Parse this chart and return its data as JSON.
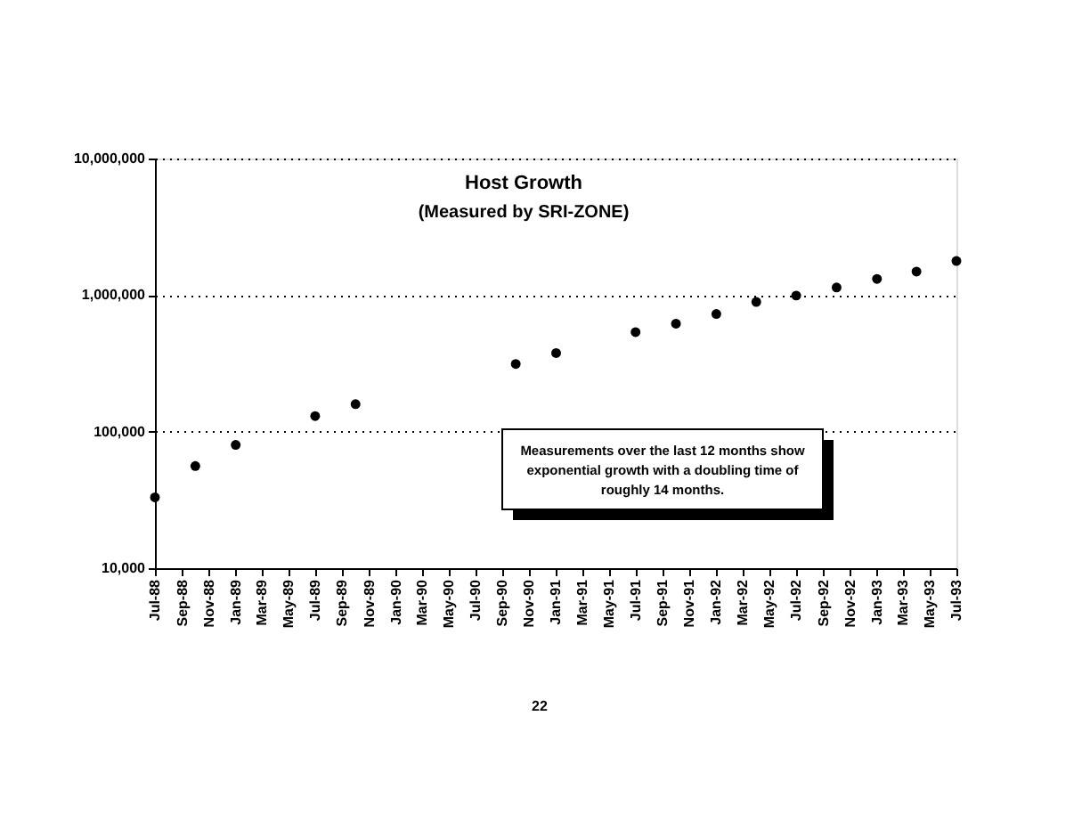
{
  "chart_data": {
    "type": "scatter",
    "title": "Host Growth",
    "subtitle": "(Measured by SRI-ZONE)",
    "x": [
      "1988-07",
      "1988-10",
      "1989-01",
      "1989-07",
      "1989-10",
      "1990-10",
      "1991-01",
      "1991-07",
      "1991-10",
      "1992-01",
      "1992-04",
      "1992-07",
      "1992-10",
      "1993-01",
      "1993-04",
      "1993-07"
    ],
    "series": [
      {
        "color": "#000000",
        "values": [
          33000,
          56000,
          80000,
          130000,
          159000,
          313000,
          376000,
          535000,
          617000,
          727000,
          890000,
          992000,
          1136000,
          1313000,
          1486000,
          1776000
        ]
      }
    ],
    "log": true,
    "ylim": [
      10000,
      10000000
    ],
    "yticks": [
      {
        "value": 10000,
        "label": "10,000"
      },
      {
        "value": 100000,
        "label": "100,000"
      },
      {
        "value": 1000000,
        "label": "1,000,000"
      },
      {
        "value": 10000000,
        "label": "10,000,000"
      }
    ],
    "xlim": [
      "1988-07",
      "1993-07"
    ],
    "xticks": [
      {
        "value": "1988-07",
        "label": "Jul-88"
      },
      {
        "value": "1988-09",
        "label": "Sep-88"
      },
      {
        "value": "1988-11",
        "label": "Nov-88"
      },
      {
        "value": "1989-01",
        "label": "Jan-89"
      },
      {
        "value": "1989-03",
        "label": "Mar-89"
      },
      {
        "value": "1989-05",
        "label": "May-89"
      },
      {
        "value": "1989-07",
        "label": "Jul-89"
      },
      {
        "value": "1989-09",
        "label": "Sep-89"
      },
      {
        "value": "1989-11",
        "label": "Nov-89"
      },
      {
        "value": "1990-01",
        "label": "Jan-90"
      },
      {
        "value": "1990-03",
        "label": "Mar-90"
      },
      {
        "value": "1990-05",
        "label": "May-90"
      },
      {
        "value": "1990-07",
        "label": "Jul-90"
      },
      {
        "value": "1990-09",
        "label": "Sep-90"
      },
      {
        "value": "1990-11",
        "label": "Nov-90"
      },
      {
        "value": "1991-01",
        "label": "Jan-91"
      },
      {
        "value": "1991-03",
        "label": "Mar-91"
      },
      {
        "value": "1991-05",
        "label": "May-91"
      },
      {
        "value": "1991-07",
        "label": "Jul-91"
      },
      {
        "value": "1991-09",
        "label": "Sep-91"
      },
      {
        "value": "1991-11",
        "label": "Nov-91"
      },
      {
        "value": "1992-01",
        "label": "Jan-92"
      },
      {
        "value": "1992-03",
        "label": "Mar-92"
      },
      {
        "value": "1992-05",
        "label": "May-92"
      },
      {
        "value": "1992-07",
        "label": "Jul-92"
      },
      {
        "value": "1992-09",
        "label": "Sep-92"
      },
      {
        "value": "1992-11",
        "label": "Nov-92"
      },
      {
        "value": "1993-01",
        "label": "Jan-93"
      },
      {
        "value": "1993-03",
        "label": "Mar-93"
      },
      {
        "value": "1993-05",
        "label": "May-93"
      },
      {
        "value": "1993-07",
        "label": "Jul-93"
      }
    ],
    "grid": "y",
    "marker": "circle",
    "annotations": [
      "Measurements over the last 12 months show exponential growth with a doubling time of roughly 14 months.",
      "22"
    ]
  }
}
